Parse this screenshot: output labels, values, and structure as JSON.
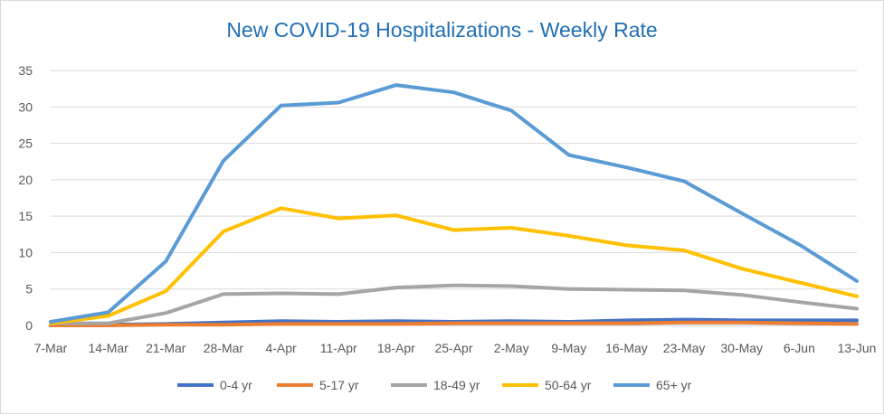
{
  "chart_data": {
    "type": "line",
    "title": "New COVID-19 Hospitalizations - Weekly Rate",
    "xlabel": "",
    "ylabel": "",
    "ylim": [
      0,
      35
    ],
    "yticks": [
      0,
      5,
      10,
      15,
      20,
      25,
      30,
      35
    ],
    "grid": true,
    "legend_position": "bottom",
    "categories": [
      "7-Mar",
      "14-Mar",
      "21-Mar",
      "28-Mar",
      "4-Apr",
      "11-Apr",
      "18-Apr",
      "25-Apr",
      "2-May",
      "9-May",
      "16-May",
      "23-May",
      "30-May",
      "6-Jun",
      "13-Jun"
    ],
    "series": [
      {
        "name": "0-4 yr",
        "color": "#4472c4",
        "values": [
          0,
          0.1,
          0.2,
          0.4,
          0.6,
          0.5,
          0.6,
          0.5,
          0.6,
          0.5,
          0.7,
          0.8,
          0.7,
          0.7,
          0.7
        ]
      },
      {
        "name": "5-17 yr",
        "color": "#ed7d31",
        "values": [
          0,
          0,
          0.1,
          0.1,
          0.2,
          0.2,
          0.2,
          0.3,
          0.3,
          0.3,
          0.3,
          0.4,
          0.4,
          0.3,
          0.2
        ]
      },
      {
        "name": "18-49 yr",
        "color": "#a5a5a5",
        "values": [
          0.3,
          0.3,
          1.7,
          4.3,
          4.4,
          4.3,
          5.2,
          5.5,
          5.4,
          5.0,
          4.9,
          4.8,
          4.2,
          3.2,
          2.3
        ]
      },
      {
        "name": "50-64 yr",
        "color": "#ffc000",
        "values": [
          0.3,
          1.3,
          4.7,
          12.9,
          16.1,
          14.7,
          15.1,
          13.1,
          13.4,
          12.3,
          11.0,
          10.3,
          7.8,
          5.9,
          4.0
        ]
      },
      {
        "name": "65+ yr",
        "color": "#5b9bd5",
        "values": [
          0.5,
          1.8,
          8.8,
          22.6,
          30.2,
          30.6,
          33.0,
          32.0,
          29.5,
          23.4,
          21.7,
          19.8,
          15.4,
          11.1,
          6.1
        ]
      }
    ]
  }
}
